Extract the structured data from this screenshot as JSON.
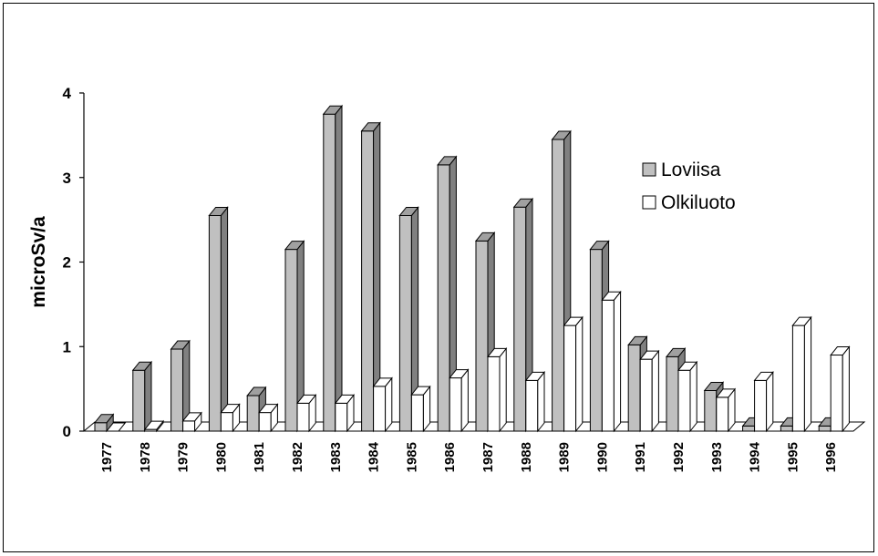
{
  "chart_data": {
    "type": "bar",
    "title": "",
    "xlabel": "",
    "ylabel": "microSv/a",
    "ylim": [
      0,
      4
    ],
    "yticks": [
      "0",
      "1",
      "2",
      "3",
      "4"
    ],
    "grid": false,
    "legend_position": "right",
    "categories": [
      "1977",
      "1978",
      "1979",
      "1980",
      "1981",
      "1982",
      "1983",
      "1984",
      "1985",
      "1986",
      "1987",
      "1988",
      "1989",
      "1990",
      "1991",
      "1992",
      "1993",
      "1994",
      "1995",
      "1996"
    ],
    "series": [
      {
        "name": "Loviisa",
        "color": "#c0c0c0",
        "values": [
          0.1,
          0.72,
          0.97,
          2.55,
          0.42,
          2.15,
          3.75,
          3.55,
          2.55,
          3.15,
          2.25,
          2.65,
          3.45,
          2.15,
          1.02,
          0.88,
          0.48,
          0.06,
          0.06,
          0.06
        ]
      },
      {
        "name": "Olkiluoto",
        "color": "#ffffff",
        "values": [
          0,
          0.02,
          0.12,
          0.22,
          0.22,
          0.33,
          0.33,
          0.53,
          0.43,
          0.63,
          0.88,
          0.6,
          1.25,
          1.55,
          0.85,
          0.72,
          0.4,
          0.6,
          1.25,
          0.9
        ]
      }
    ]
  }
}
